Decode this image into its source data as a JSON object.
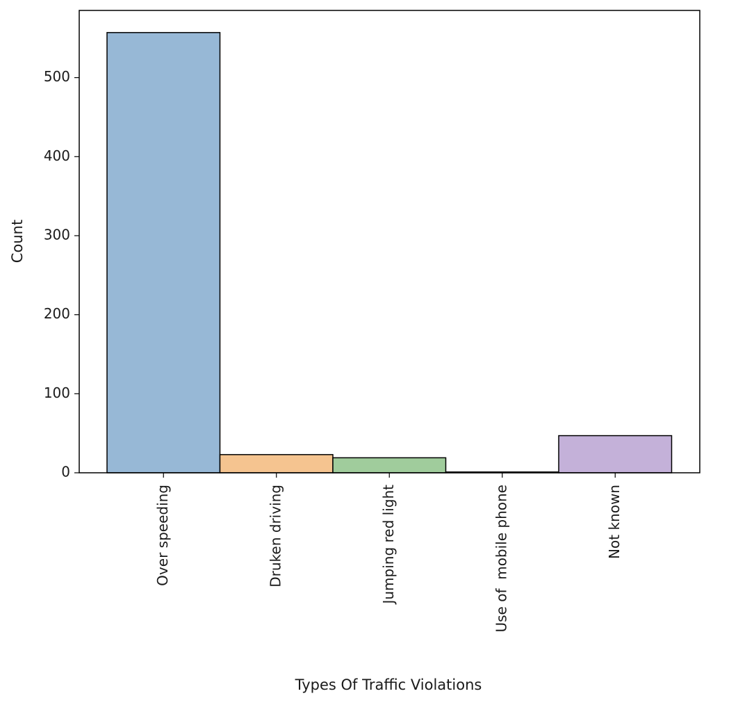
{
  "chart_data": {
    "type": "bar",
    "xlabel": "Types Of Traffic Violations",
    "ylabel": "Count",
    "ylim": [
      0,
      585
    ],
    "yticks": [
      0,
      100,
      200,
      300,
      400,
      500
    ],
    "grid": false,
    "legend": "none",
    "categories": [
      "Over speeding",
      "Druken driving",
      "Jumping red light",
      "Use of  mobile phone",
      "Not known"
    ],
    "values": [
      557,
      23,
      19,
      1,
      47
    ],
    "colors": [
      "#97b8d6",
      "#f5c490",
      "#a0cc9c",
      "#e8a0a0",
      "#c4b1d9"
    ]
  }
}
